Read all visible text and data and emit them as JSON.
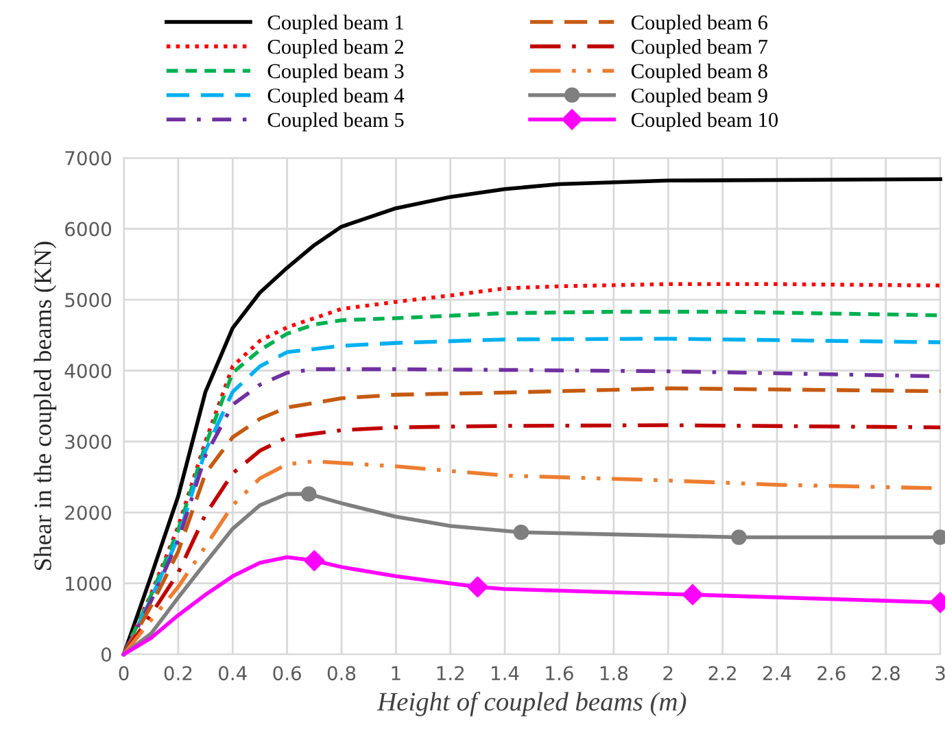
{
  "chart_data": {
    "type": "line",
    "xlabel": "Height of coupled beams (m)",
    "ylabel": "Shear in the coupled beams (KN)",
    "xlim": [
      0,
      3
    ],
    "xticks": [
      0,
      0.2,
      0.4,
      0.6,
      0.8,
      1,
      1.2,
      1.4,
      1.6,
      1.8,
      2,
      2.2,
      2.4,
      2.6,
      2.8,
      3
    ],
    "ylim": [
      0,
      7000
    ],
    "yticks": [
      0,
      1000,
      2000,
      3000,
      4000,
      5000,
      6000,
      7000
    ],
    "grid": true,
    "legend": "top",
    "series": [
      {
        "name": "Coupled beam 1",
        "color": "#000000",
        "line_style": "solid",
        "x": [
          0,
          0.1,
          0.2,
          0.3,
          0.4,
          0.5,
          0.6,
          0.7,
          0.8,
          1.0,
          1.2,
          1.4,
          1.6,
          2.0,
          3.0
        ],
        "values": [
          0,
          1100,
          2230,
          3700,
          4600,
          5100,
          5450,
          5770,
          6030,
          6290,
          6450,
          6560,
          6630,
          6680,
          6700
        ]
      },
      {
        "name": "Coupled beam 2",
        "color": "#ff0000",
        "line_style": "dotted",
        "x": [
          0,
          0.1,
          0.2,
          0.3,
          0.4,
          0.5,
          0.6,
          0.8,
          1.0,
          1.2,
          1.4,
          1.6,
          2.0,
          2.4,
          3.0
        ],
        "values": [
          0,
          850,
          1800,
          3000,
          4060,
          4420,
          4610,
          4870,
          4970,
          5060,
          5160,
          5190,
          5220,
          5220,
          5200
        ]
      },
      {
        "name": "Coupled beam 3",
        "color": "#00b050",
        "line_style": "dashed",
        "x": [
          0,
          0.1,
          0.2,
          0.3,
          0.4,
          0.5,
          0.6,
          0.7,
          0.8,
          1.0,
          1.4,
          1.8,
          2.2,
          3.0
        ],
        "values": [
          0,
          830,
          1750,
          2950,
          3970,
          4290,
          4520,
          4650,
          4710,
          4740,
          4810,
          4830,
          4830,
          4780
        ]
      },
      {
        "name": "Coupled beam 4",
        "color": "#00b0f0",
        "line_style": "longdash",
        "x": [
          0,
          0.1,
          0.2,
          0.3,
          0.4,
          0.5,
          0.6,
          0.8,
          1.0,
          1.4,
          2.0,
          3.0
        ],
        "values": [
          0,
          780,
          1650,
          2870,
          3700,
          4060,
          4260,
          4350,
          4390,
          4440,
          4450,
          4400
        ]
      },
      {
        "name": "Coupled beam 5",
        "color": "#7030a0",
        "line_style": "dashdot",
        "x": [
          0,
          0.1,
          0.2,
          0.3,
          0.4,
          0.5,
          0.6,
          0.7,
          1.0,
          1.4,
          2.0,
          3.0
        ],
        "values": [
          0,
          750,
          1600,
          2800,
          3520,
          3800,
          3970,
          4020,
          4020,
          4010,
          3990,
          3920
        ]
      },
      {
        "name": "Coupled beam 6",
        "color": "#c55a11",
        "line_style": "longdash",
        "x": [
          0,
          0.1,
          0.2,
          0.3,
          0.4,
          0.5,
          0.6,
          0.8,
          1.0,
          1.4,
          2.0,
          3.0
        ],
        "values": [
          0,
          680,
          1450,
          2550,
          3060,
          3320,
          3480,
          3610,
          3660,
          3690,
          3750,
          3710
        ]
      },
      {
        "name": "Coupled beam 7",
        "color": "#c00000",
        "line_style": "longdashdot",
        "x": [
          0,
          0.1,
          0.2,
          0.3,
          0.4,
          0.5,
          0.6,
          0.8,
          1.0,
          1.4,
          2.0,
          3.0
        ],
        "values": [
          0,
          560,
          1150,
          1970,
          2550,
          2870,
          3060,
          3160,
          3200,
          3220,
          3230,
          3200
        ]
      },
      {
        "name": "Coupled beam 8",
        "color": "#ed7d31",
        "line_style": "longdashdotdot",
        "x": [
          0,
          0.1,
          0.2,
          0.3,
          0.4,
          0.5,
          0.6,
          0.7,
          1.0,
          1.4,
          2.0,
          2.4,
          3.0
        ],
        "values": [
          0,
          480,
          950,
          1520,
          2100,
          2480,
          2680,
          2720,
          2650,
          2520,
          2450,
          2390,
          2340
        ]
      },
      {
        "name": "Coupled beam 9",
        "color": "#7f7f7f",
        "line_style": "solid",
        "x": [
          0,
          0.1,
          0.2,
          0.3,
          0.4,
          0.5,
          0.6,
          0.68,
          0.8,
          1.0,
          1.2,
          1.46,
          2.26,
          3.0
        ],
        "values": [
          0,
          290,
          800,
          1290,
          1770,
          2100,
          2260,
          2260,
          2130,
          1940,
          1810,
          1720,
          1650,
          1650
        ]
      },
      {
        "type": "scatter",
        "color": "#7f7f7f",
        "marker": "circle",
        "x": [
          0.68,
          1.46,
          2.26,
          3.0
        ],
        "values": [
          2260,
          1720,
          1650,
          1650
        ]
      },
      {
        "name": "Coupled beam 10",
        "color": "#ff00ff",
        "line_style": "solid",
        "x": [
          0,
          0.1,
          0.2,
          0.3,
          0.4,
          0.5,
          0.6,
          0.7,
          0.8,
          1.0,
          1.2,
          1.3,
          1.4,
          2.09,
          3.0
        ],
        "values": [
          0,
          230,
          550,
          840,
          1100,
          1290,
          1370,
          1320,
          1230,
          1100,
          1000,
          950,
          920,
          840,
          730
        ]
      },
      {
        "type": "scatter",
        "color": "#ff00ff",
        "marker": "diamond",
        "x": [
          0.7,
          1.3,
          2.09,
          3.0
        ],
        "values": [
          1320,
          950,
          840,
          730
        ]
      }
    ]
  }
}
